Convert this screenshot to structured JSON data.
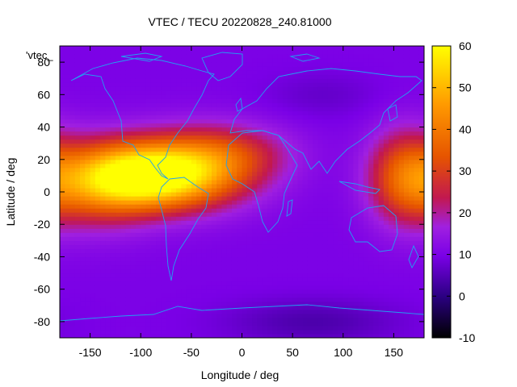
{
  "chart_data": {
    "type": "heatmap",
    "title": "VTEC / TECU 20220828_240.81000",
    "xlabel": "Longitude / deg",
    "ylabel": "Latitude / deg",
    "key_label": "'vtec_",
    "xlim": [
      -180,
      180
    ],
    "ylim": [
      -90,
      90
    ],
    "xticks": [
      -150,
      -100,
      -50,
      0,
      50,
      100,
      150
    ],
    "yticks": [
      -80,
      -60,
      -40,
      -20,
      0,
      20,
      40,
      60,
      80
    ],
    "colorbar": {
      "range": [
        -10,
        60
      ],
      "ticks": [
        -10,
        0,
        10,
        20,
        30,
        40,
        50,
        60
      ],
      "palette": [
        "#000000",
        "#2a0080",
        "#7a00e6",
        "#a020e0",
        "#c2184f",
        "#e65400",
        "#ff9a00",
        "#ffff00"
      ]
    },
    "coastline_color": "#22a0f0",
    "grid": false,
    "field": {
      "background_vtec": 10,
      "features": [
        {
          "lon": -95,
          "lat": 10,
          "peak_vtec": 53,
          "sigma_lon": 45,
          "sigma_lat": 14
        },
        {
          "lon": -40,
          "lat": 15,
          "peak_vtec": 33,
          "sigma_lon": 45,
          "sigma_lat": 16
        },
        {
          "lon": -145,
          "lat": 5,
          "peak_vtec": 31,
          "sigma_lon": 40,
          "sigma_lat": 18
        },
        {
          "lon": 160,
          "lat": 10,
          "peak_vtec": 30,
          "sigma_lon": 25,
          "sigma_lat": 20
        },
        {
          "lon": 0,
          "lat": 25,
          "peak_vtec": 17,
          "sigma_lon": 40,
          "sigma_lat": 12
        },
        {
          "lon": 70,
          "lat": -80,
          "peak_vtec": -6,
          "sigma_lon": 60,
          "sigma_lat": 10
        },
        {
          "lon": 80,
          "lat": 60,
          "peak_vtec": 6,
          "sigma_lon": 40,
          "sigma_lat": 10
        }
      ]
    }
  }
}
